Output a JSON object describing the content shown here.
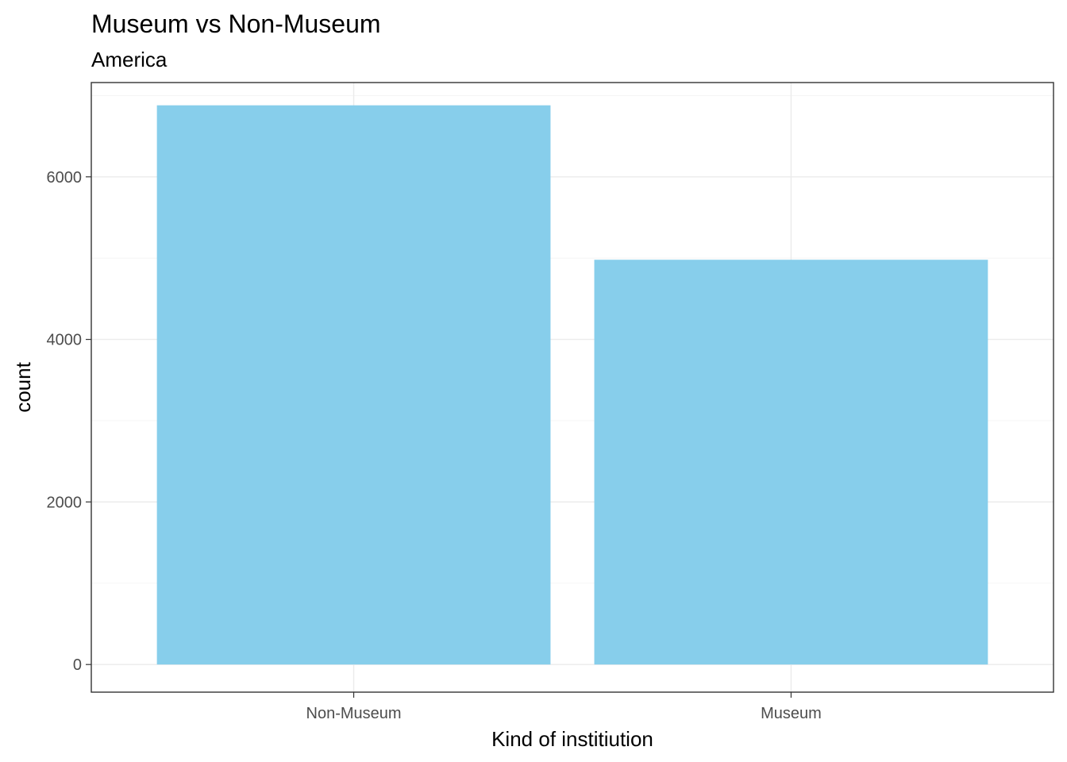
{
  "chart_data": {
    "type": "bar",
    "title": "Museum vs Non-Museum",
    "subtitle": "America",
    "xlabel": "Kind of institiution",
    "ylabel": "count",
    "categories": [
      "Non-Museum",
      "Museum"
    ],
    "values": [
      6880,
      4980
    ],
    "ylim": [
      -340,
      7160
    ],
    "yticks": [
      0,
      2000,
      4000,
      6000
    ],
    "ytick_labels": [
      "0",
      "2000",
      "4000",
      "6000"
    ],
    "grid": true,
    "legend": "none",
    "bar_color": "#87CEEB"
  }
}
